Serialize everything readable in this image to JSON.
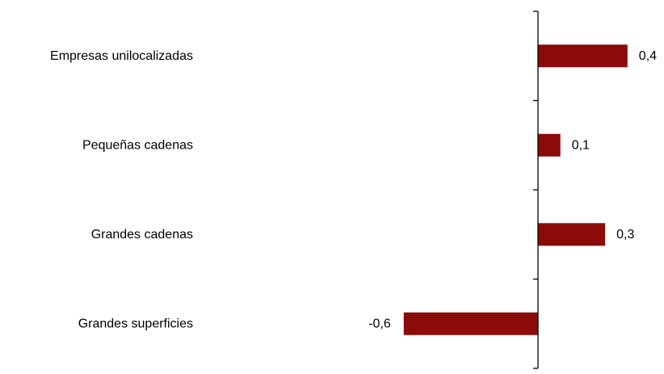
{
  "chart_data": {
    "type": "bar",
    "orientation": "horizontal",
    "title": "",
    "xlabel": "",
    "ylabel": "",
    "categories": [
      "Empresas unilocalizadas",
      "Pequeñas cadenas",
      "Grandes cadenas",
      "Grandes superficies"
    ],
    "values": [
      0.4,
      0.1,
      0.3,
      -0.6
    ],
    "value_labels": [
      "0,4",
      "0,1",
      "0,3",
      "-0,6"
    ],
    "xlim": [
      -0.6,
      0.5
    ],
    "bar_color": "#8B0A0A",
    "grid": false,
    "legend": "none",
    "gridlines": false
  }
}
